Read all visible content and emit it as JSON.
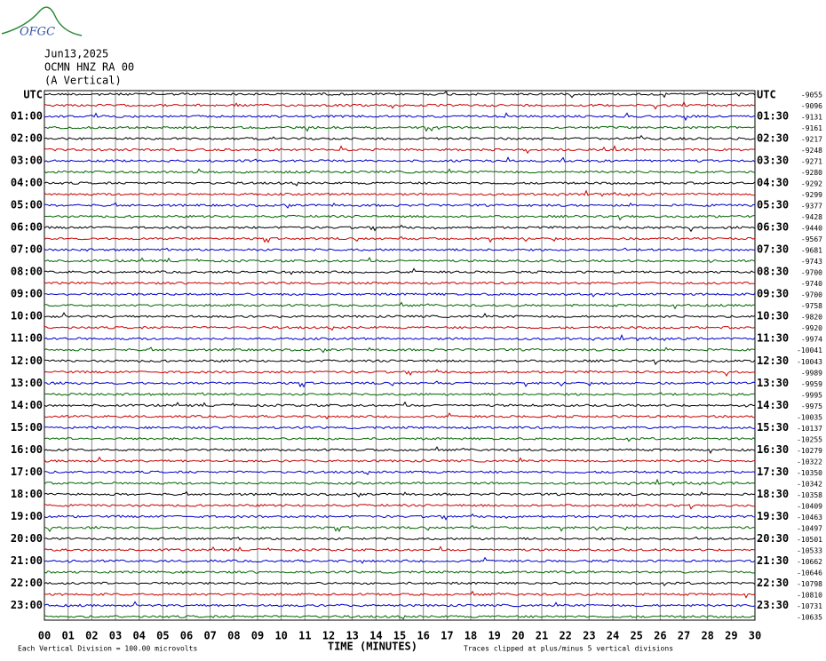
{
  "logo": "OFGC",
  "chart_data": {
    "type": "helicorder",
    "title": "Jun13,2025",
    "subtitle": "OCMN HNZ RA 00",
    "component": "(A Vertical)",
    "xlabel": "TIME (MINUTES)",
    "scale_note": "Each Vertical Division =  100.00 microvolts",
    "clip_note": "Traces clipped at plus/minus 5 vertical divisions",
    "colors": [
      "#000000",
      "#cc0000",
      "#0000cc",
      "#006600"
    ],
    "xlim": [
      0,
      30
    ],
    "xticks": [
      {
        "value": 0,
        "label": "00"
      },
      {
        "value": 1,
        "label": "01"
      },
      {
        "value": 2,
        "label": "02"
      },
      {
        "value": 3,
        "label": "03"
      },
      {
        "value": 4,
        "label": "04"
      },
      {
        "value": 5,
        "label": "05"
      },
      {
        "value": 6,
        "label": "06"
      },
      {
        "value": 7,
        "label": "07"
      },
      {
        "value": 8,
        "label": "08"
      },
      {
        "value": 9,
        "label": "09"
      },
      10,
      11,
      12,
      13,
      14,
      15,
      16,
      17,
      18,
      19,
      20,
      21,
      22,
      23,
      24,
      25,
      26,
      27,
      28,
      29,
      30
    ],
    "left_labels": [
      "UTC",
      "01:00",
      "02:00",
      "03:00",
      "04:00",
      "05:00",
      "06:00",
      "07:00",
      "08:00",
      "09:00",
      "10:00",
      "11:00",
      "12:00",
      "13:00",
      "14:00",
      "15:00",
      "16:00",
      "17:00",
      "18:00",
      "19:00",
      "20:00",
      "21:00",
      "22:00",
      "23:00"
    ],
    "right_labels": [
      "UTC",
      "01:30",
      "02:30",
      "03:30",
      "04:30",
      "05:30",
      "06:30",
      "07:30",
      "08:30",
      "09:30",
      "10:30",
      "11:30",
      "12:30",
      "13:30",
      "14:30",
      "15:30",
      "16:30",
      "17:30",
      "18:30",
      "19:30",
      "20:30",
      "21:30",
      "22:30",
      "23:30"
    ],
    "row_offsets": [
      "-9055",
      "-9096",
      "-9131",
      "-9161",
      "-9217",
      "-9248",
      "-9271",
      "-9280",
      "-9292",
      "-9299",
      "-9377",
      "-9428",
      "-9440",
      "-9567",
      "-9681",
      "-9743",
      "-9700",
      "-9740",
      "-9700",
      "-9758",
      "-9820",
      "-9920",
      "-9974",
      "-10041",
      "-10043",
      "-9989",
      "-9959",
      "-9995",
      "-9975",
      "-10035",
      "-10137",
      "-10255",
      "-10279",
      "-10322",
      "-10350",
      "-10342",
      "-10358",
      "-10409",
      "-10463",
      "-10497",
      "-10501",
      "-10533",
      "-10662",
      "-10646",
      "-10798",
      "-10810",
      "-10731",
      "-10635"
    ]
  }
}
